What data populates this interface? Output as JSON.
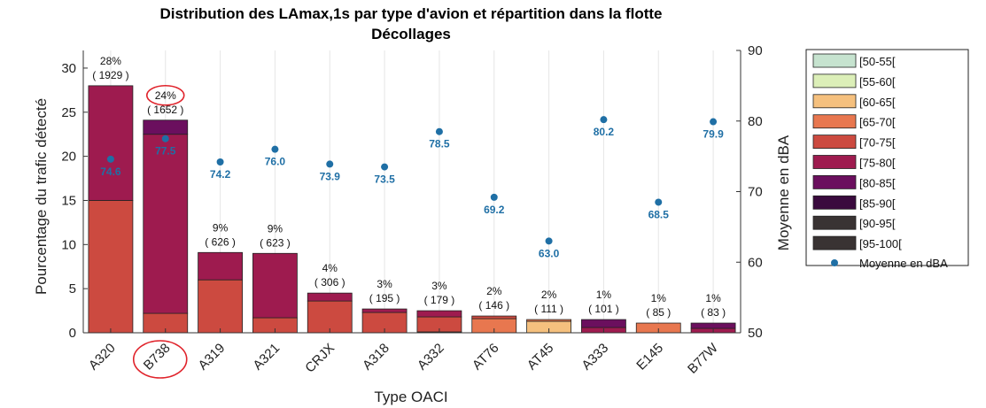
{
  "chart_data": {
    "type": "bar",
    "title": "Distribution des LAmax,1s par type d'avion et répartition dans la flotte",
    "subtitle": "Décollages",
    "xlabel": "Type OACI",
    "ylabel": "Pourcentage du trafic détecté",
    "y2label": "Moyenne en dBA",
    "ylim": [
      0,
      32
    ],
    "y2lim": [
      50,
      90
    ],
    "yticks": [
      0,
      5,
      10,
      15,
      20,
      25,
      30
    ],
    "y2ticks": [
      50,
      60,
      70,
      80,
      90
    ],
    "grid": "vertical",
    "legend_position": "right",
    "categories": [
      "A320",
      "B738",
      "A319",
      "A321",
      "CRJX",
      "A318",
      "A332",
      "AT76",
      "AT45",
      "A333",
      "E145",
      "B77W"
    ],
    "highlighted_category": "B738",
    "series": [
      {
        "name": "[50-55[",
        "color": "#c6e3cf",
        "values": [
          0,
          0,
          0,
          0,
          0,
          0,
          0,
          0,
          0,
          0,
          0,
          0
        ]
      },
      {
        "name": "[55-60[",
        "color": "#dcefb8",
        "values": [
          0,
          0,
          0,
          0,
          0,
          0,
          0,
          0,
          0,
          0,
          0,
          0
        ]
      },
      {
        "name": "[60-65[",
        "color": "#f5c07e",
        "values": [
          0,
          0,
          0,
          0,
          0,
          0,
          0,
          0,
          1.3,
          0,
          0,
          0
        ]
      },
      {
        "name": "[65-70[",
        "color": "#e8774f",
        "values": [
          0,
          0,
          0,
          0,
          0,
          0,
          0.1,
          1.6,
          0.2,
          0,
          1.1,
          0
        ]
      },
      {
        "name": "[70-75[",
        "color": "#cc4a40",
        "values": [
          15.0,
          2.2,
          6.0,
          1.7,
          3.6,
          2.3,
          1.7,
          0.3,
          0,
          0,
          0,
          0
        ]
      },
      {
        "name": "[75-80[",
        "color": "#9e1b4f",
        "values": [
          13.0,
          20.3,
          3.1,
          7.3,
          0.9,
          0.4,
          0.7,
          0,
          0,
          0.6,
          0,
          0.5
        ]
      },
      {
        "name": "[80-85[",
        "color": "#6b0f5e",
        "values": [
          0,
          1.6,
          0,
          0,
          0,
          0,
          0,
          0,
          0,
          0.9,
          0,
          0.6
        ]
      },
      {
        "name": "[85-90[",
        "color": "#3a0a3e",
        "values": [
          0,
          0,
          0,
          0,
          0,
          0,
          0,
          0,
          0,
          0,
          0,
          0
        ]
      },
      {
        "name": "[90-95[",
        "color": "#393333",
        "values": [
          0,
          0,
          0,
          0,
          0,
          0,
          0,
          0,
          0,
          0,
          0,
          0
        ]
      },
      {
        "name": "[95-100[",
        "color": "#393333",
        "values": [
          0,
          0,
          0,
          0,
          0,
          0,
          0,
          0,
          0,
          0,
          0,
          0
        ]
      }
    ],
    "bar_labels": [
      {
        "pct": "28%",
        "count": "( 1929 )"
      },
      {
        "pct": "24%",
        "count": "( 1652 )"
      },
      {
        "pct": "9%",
        "count": "( 626 )"
      },
      {
        "pct": "9%",
        "count": "( 623 )"
      },
      {
        "pct": "4%",
        "count": "( 306 )"
      },
      {
        "pct": "3%",
        "count": "( 195 )"
      },
      {
        "pct": "3%",
        "count": "( 179 )"
      },
      {
        "pct": "2%",
        "count": "( 146 )"
      },
      {
        "pct": "2%",
        "count": "( 111 )"
      },
      {
        "pct": "1%",
        "count": "( 101 )"
      },
      {
        "pct": "1%",
        "count": "( 85 )"
      },
      {
        "pct": "1%",
        "count": "( 83 )"
      }
    ],
    "mean_series": {
      "name": "Moyenne en dBA",
      "color": "#1f6fa5",
      "values": [
        74.6,
        77.5,
        74.2,
        76.0,
        73.9,
        73.5,
        78.5,
        69.2,
        63.0,
        80.2,
        68.5,
        79.9
      ],
      "labels": [
        "74.6",
        "77.5",
        "74.2",
        "76.0",
        "73.9",
        "73.5",
        "78.5",
        "69.2",
        "63.0",
        "80.2",
        "68.5",
        "79.9"
      ]
    },
    "highlight_color": "#e0232b"
  }
}
